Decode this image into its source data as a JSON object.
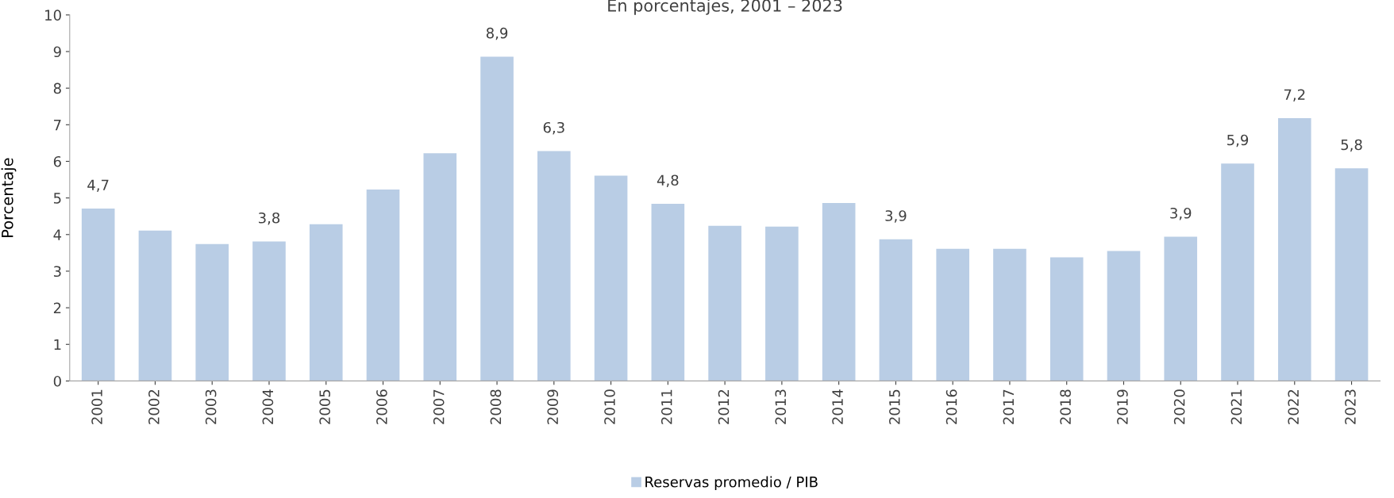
{
  "chart_data": {
    "type": "bar",
    "title": "En porcentajes, 2001 – 2023",
    "ylabel": "Porcentaje",
    "categories": [
      "2001",
      "2002",
      "2003",
      "2004",
      "2005",
      "2006",
      "2007",
      "2008",
      "2009",
      "2010",
      "2011",
      "2012",
      "2013",
      "2014",
      "2015",
      "2016",
      "2017",
      "2018",
      "2019",
      "2020",
      "2021",
      "2022",
      "2023"
    ],
    "series": [
      {
        "name": "Reservas promedio / PIB",
        "color": "#b9cde5",
        "values": [
          4.71,
          4.11,
          3.74,
          3.81,
          4.28,
          5.23,
          6.22,
          8.86,
          6.28,
          5.61,
          4.84,
          4.24,
          4.22,
          4.86,
          3.87,
          3.61,
          3.61,
          3.38,
          3.55,
          3.94,
          5.94,
          7.18,
          5.81
        ],
        "value_labels": [
          "4,7",
          null,
          null,
          "3,8",
          null,
          null,
          null,
          "8,9",
          "6,3",
          null,
          "4,8",
          null,
          null,
          null,
          "3,9",
          null,
          null,
          null,
          null,
          "3,9",
          "5,9",
          "7,2",
          "5,8"
        ]
      }
    ],
    "ylim": [
      0,
      10
    ],
    "yticks": [
      0,
      1,
      2,
      3,
      4,
      5,
      6,
      7,
      8,
      9,
      10
    ],
    "grid": false,
    "legend": "bottom"
  }
}
